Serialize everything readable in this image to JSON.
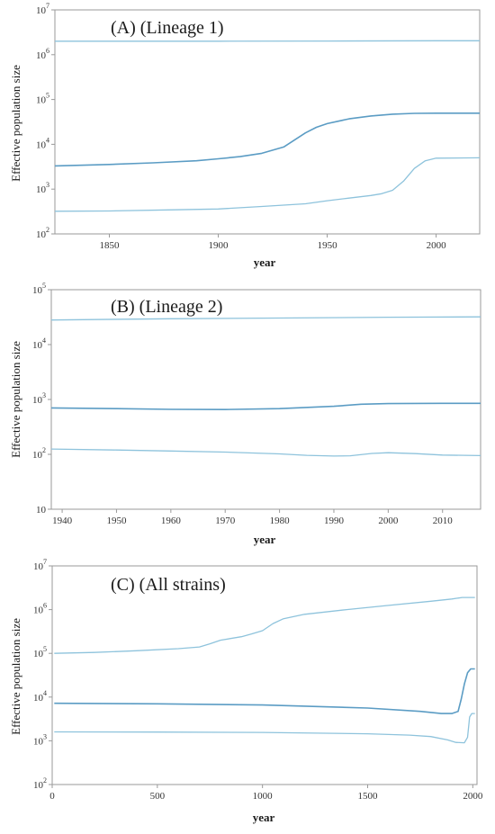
{
  "chart_data": [
    {
      "type": "line",
      "title": "(A) (Lineage 1)",
      "xlabel": "year",
      "ylabel": "Effective population size",
      "xlim": [
        1825,
        2020
      ],
      "ylim": [
        100,
        10000000
      ],
      "yscale": "log",
      "x_ticks": [
        1850,
        1900,
        1950,
        2000
      ],
      "y_ticks": [
        {
          "value": 100,
          "base": "10",
          "exp": "2"
        },
        {
          "value": 1000,
          "base": "10",
          "exp": "3"
        },
        {
          "value": 10000,
          "base": "10",
          "exp": "4"
        },
        {
          "value": 100000,
          "base": "10",
          "exp": "5"
        },
        {
          "value": 1000000,
          "base": "10",
          "exp": "6"
        },
        {
          "value": 10000000,
          "base": "10",
          "exp": "7"
        }
      ],
      "grid": false,
      "series": [
        {
          "role": "upper",
          "color": "#8ec3dc",
          "x": [
            1825,
            1850,
            1900,
            1950,
            2000,
            2020
          ],
          "y": [
            2000000,
            2000000,
            2000000,
            2020000,
            2050000,
            2050000
          ]
        },
        {
          "role": "median",
          "color": "#5b9cc4",
          "x": [
            1825,
            1850,
            1870,
            1890,
            1900,
            1910,
            1920,
            1930,
            1935,
            1940,
            1945,
            1950,
            1960,
            1970,
            1980,
            1990,
            2000,
            2020
          ],
          "y": [
            3300,
            3550,
            3850,
            4300,
            4750,
            5300,
            6300,
            8700,
            12500,
            18000,
            24000,
            29000,
            37000,
            43000,
            47000,
            49000,
            49500,
            49500
          ]
        },
        {
          "role": "lower",
          "color": "#8ec3dc",
          "x": [
            1825,
            1850,
            1880,
            1900,
            1920,
            1940,
            1950,
            1960,
            1970,
            1975,
            1980,
            1985,
            1990,
            1995,
            2000,
            2020
          ],
          "y": [
            320,
            325,
            345,
            360,
            410,
            470,
            550,
            630,
            720,
            790,
            940,
            1500,
            2900,
            4300,
            4900,
            5000
          ]
        }
      ]
    },
    {
      "type": "line",
      "title": "(B) (Lineage 2)",
      "xlabel": "year",
      "ylabel": "Effective population size",
      "xlim": [
        1938,
        2017
      ],
      "ylim": [
        10,
        100000
      ],
      "yscale": "log",
      "x_ticks": [
        1940,
        1950,
        1960,
        1970,
        1980,
        1990,
        2000,
        2010
      ],
      "y_ticks": [
        {
          "value": 10,
          "base": "10",
          "exp": ""
        },
        {
          "value": 100,
          "base": "10",
          "exp": "2"
        },
        {
          "value": 1000,
          "base": "10",
          "exp": "3"
        },
        {
          "value": 10000,
          "base": "10",
          "exp": "4"
        },
        {
          "value": 100000,
          "base": "10",
          "exp": "5"
        }
      ],
      "grid": false,
      "series": [
        {
          "role": "upper",
          "color": "#8ec3dc",
          "x": [
            1938,
            1960,
            1980,
            2000,
            2017
          ],
          "y": [
            28000,
            29500,
            30500,
            31500,
            32000
          ]
        },
        {
          "role": "median",
          "color": "#5b9cc4",
          "x": [
            1938,
            1950,
            1960,
            1970,
            1980,
            1990,
            1995,
            2000,
            2010,
            2017
          ],
          "y": [
            700,
            680,
            660,
            655,
            680,
            750,
            820,
            840,
            850,
            850
          ]
        },
        {
          "role": "lower",
          "color": "#8ec3dc",
          "x": [
            1938,
            1950,
            1960,
            1970,
            1980,
            1985,
            1990,
            1993,
            1997,
            2000,
            2005,
            2010,
            2017
          ],
          "y": [
            125,
            120,
            115,
            110,
            102,
            96,
            93,
            94,
            104,
            107,
            103,
            97,
            95
          ]
        }
      ]
    },
    {
      "type": "line",
      "title": "(C) (All strains)",
      "xlabel": "year",
      "ylabel": "Effective population size",
      "xlim": [
        0,
        2020
      ],
      "ylim": [
        100,
        10000000
      ],
      "yscale": "log",
      "x_ticks": [
        0,
        500,
        1000,
        1500,
        2000
      ],
      "y_ticks": [
        {
          "value": 100,
          "base": "10",
          "exp": "2"
        },
        {
          "value": 1000,
          "base": "10",
          "exp": "3"
        },
        {
          "value": 10000,
          "base": "10",
          "exp": "4"
        },
        {
          "value": 100000,
          "base": "10",
          "exp": "5"
        },
        {
          "value": 1000000,
          "base": "10",
          "exp": "6"
        },
        {
          "value": 10000000,
          "base": "10",
          "exp": "7"
        }
      ],
      "grid": false,
      "series": [
        {
          "role": "upper",
          "color": "#8ec3dc",
          "x": [
            10,
            200,
            400,
            600,
            700,
            750,
            800,
            900,
            950,
            1000,
            1050,
            1100,
            1200,
            1400,
            1600,
            1800,
            1900,
            1950,
            2010
          ],
          "y": [
            100000,
            105000,
            115000,
            128000,
            140000,
            165000,
            200000,
            240000,
            280000,
            330000,
            480000,
            620000,
            780000,
            1000000,
            1250000,
            1550000,
            1750000,
            1900000,
            1900000
          ]
        },
        {
          "role": "median",
          "color": "#5b9cc4",
          "x": [
            10,
            500,
            1000,
            1500,
            1750,
            1850,
            1900,
            1930,
            1945,
            1960,
            1975,
            1990,
            2010
          ],
          "y": [
            7200,
            7000,
            6600,
            5600,
            4700,
            4200,
            4200,
            4700,
            9000,
            20000,
            36000,
            44000,
            44000
          ]
        },
        {
          "role": "lower",
          "color": "#8ec3dc",
          "x": [
            10,
            500,
            1000,
            1500,
            1700,
            1800,
            1880,
            1920,
            1960,
            1975,
            1985,
            1995,
            2010
          ],
          "y": [
            1600,
            1580,
            1550,
            1450,
            1350,
            1250,
            1050,
            920,
            900,
            1200,
            3500,
            4200,
            4200
          ]
        }
      ]
    }
  ]
}
